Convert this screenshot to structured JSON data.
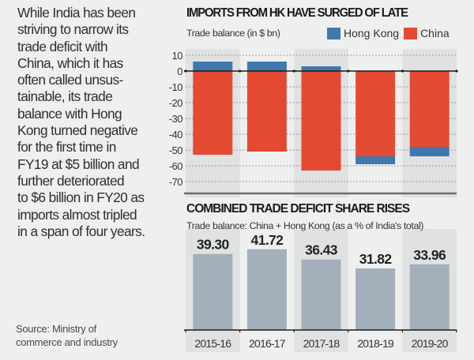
{
  "story": {
    "lines": [
      "While India has been",
      "striving to narrow its",
      "trade deficit with",
      "China, which it has",
      "often called unsus-",
      "tainable, its trade",
      "balance with Hong",
      "Kong turned negative",
      "for the first time in",
      "FY19 at $5 billion and",
      "further deteriorated",
      "to $6 billion in FY20 as",
      "imports almost tripled",
      "in a span of four years."
    ]
  },
  "source": {
    "line1": "Source: Ministry of",
    "line2": "commerce and industry"
  },
  "colors": {
    "hong_kong": "#3f78ad",
    "china": "#e44a32",
    "share_bar": "#a3b0bb",
    "column_shade": "#d6d7d7"
  },
  "chart_data": [
    {
      "type": "bar",
      "stacked": true,
      "title": "IMPORTS FROM HK HAVE SURGED OF LATE",
      "subtitle": "Trade balance (in $ bn)",
      "ylabel": "Trade balance (in $ bn)",
      "categories": [
        "2015-16",
        "2016-17",
        "2017-18",
        "2018-19",
        "2019-20"
      ],
      "series": [
        {
          "name": "Hong Kong",
          "values": [
            6,
            6,
            3,
            -5,
            -6
          ]
        },
        {
          "name": "China",
          "values": [
            -53,
            -51,
            -63,
            -54,
            -48
          ]
        }
      ],
      "ylim": [
        -75,
        10
      ],
      "yticks": [
        10,
        0,
        -10,
        -20,
        -30,
        -40,
        -50,
        -60,
        -70
      ],
      "grid": true,
      "legend": "top-right"
    },
    {
      "type": "bar",
      "title": "COMBINED TRADE DEFICIT SHARE RISES",
      "subtitle": "Trade balance: China + Hong Kong (as a % of India's total)",
      "categories": [
        "2015-16",
        "2016-17",
        "2017-18",
        "2018-19",
        "2019-20"
      ],
      "values": [
        39.3,
        41.72,
        36.43,
        31.82,
        33.96
      ],
      "value_labels": [
        "39.30",
        "41.72",
        "36.43",
        "31.82",
        "33.96"
      ],
      "ylim": [
        0,
        45
      ],
      "grid": false
    }
  ]
}
